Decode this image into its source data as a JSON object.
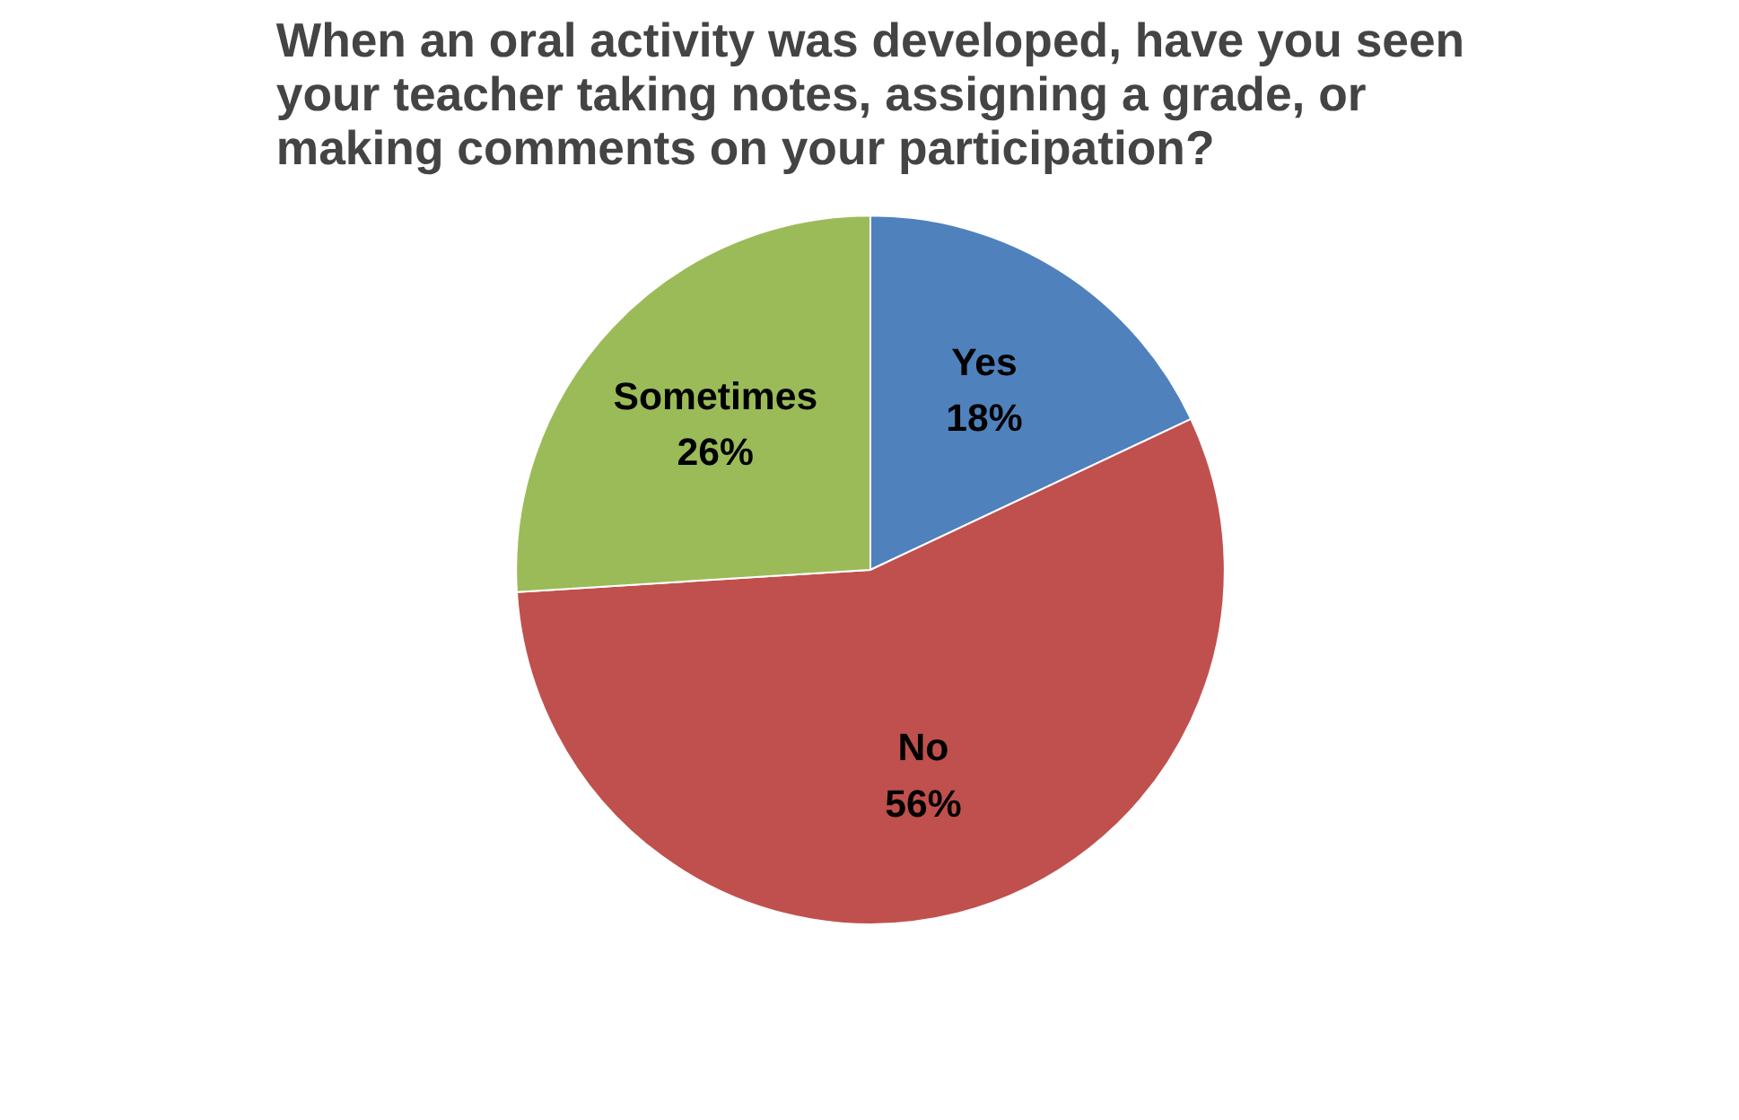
{
  "chart_data": {
    "type": "pie",
    "title": "When an oral activity was developed, have you seen your teacher taking notes, assigning a grade, or making comments on your participation?",
    "categories": [
      "Yes",
      "No",
      "Sometimes"
    ],
    "values": [
      18,
      56,
      26
    ],
    "value_labels": [
      "18%",
      "56%",
      "26%"
    ],
    "colors": [
      "#4f81bd",
      "#c0504d",
      "#9bbb59"
    ],
    "legend": false
  }
}
